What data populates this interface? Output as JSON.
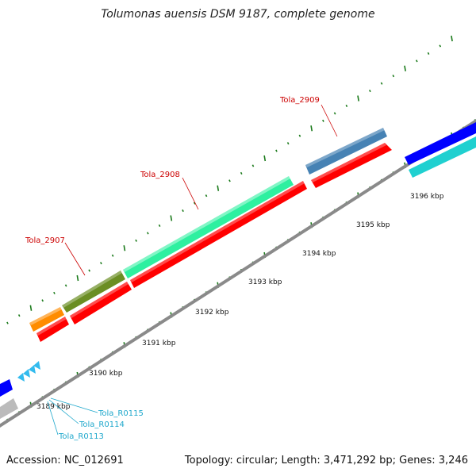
{
  "header": {
    "title": "Tolumonas auensis DSM 9187, complete genome"
  },
  "footer": {
    "accession": "Accession: NC_012691",
    "topology": "Topology: circular; Length: 3,471,292 bp; Genes: 3,246"
  },
  "colors": {
    "backbone": "#888888",
    "tick": "#1a7a1a",
    "reverse_gene": "#ff0000",
    "forward_green": "#6b8e23",
    "forward_mint": "#2ef0a0",
    "forward_orange": "#ff8c00",
    "forward_steel": "#4682b4",
    "forward_blue": "#0000ff",
    "forward_cyan": "#20d0d0",
    "forward_gray": "#bbbbbb",
    "rna": "#33bbee",
    "label_red": "#cc0000",
    "label_cyan": "#1fa8cc"
  },
  "scale": {
    "labels": [
      "3189 kbp",
      "3190 kbp",
      "3191 kbp",
      "3192 kbp",
      "3193 kbp",
      "3194 kbp",
      "3195 kbp",
      "3196 kbp"
    ]
  },
  "gene_labels": [
    "Tola_2907",
    "Tola_2908",
    "Tola_2909"
  ],
  "rna_labels": [
    "Tola_R0115",
    "Tola_R0114",
    "Tola_R0113"
  ]
}
